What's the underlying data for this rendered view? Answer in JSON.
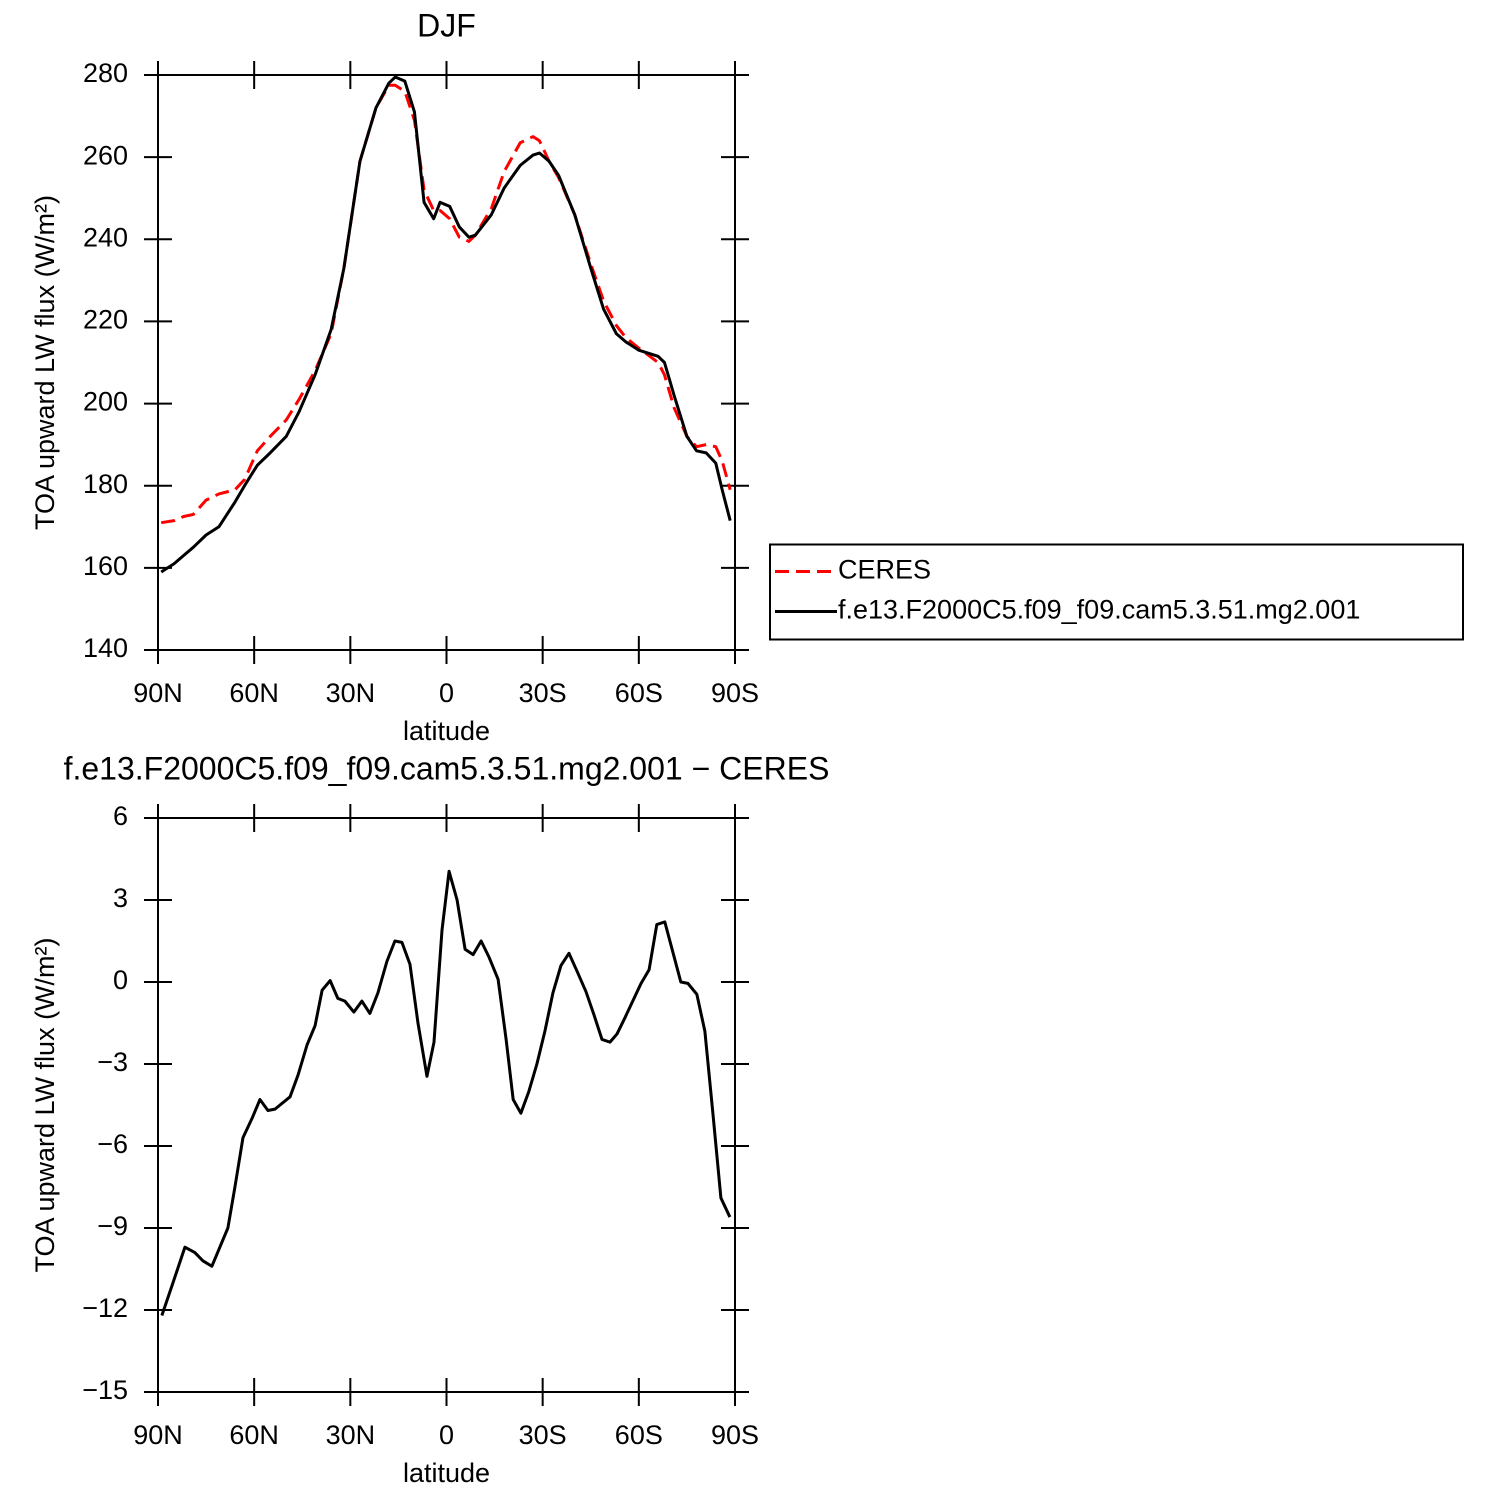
{
  "chart_data": [
    {
      "type": "line",
      "title": "DJF",
      "xlabel": "latitude",
      "ylabel": "TOA upward LW flux (W/m²)",
      "x": [
        89,
        85,
        82,
        79,
        75,
        71,
        66,
        63,
        59,
        55,
        50,
        46,
        41,
        36,
        32,
        27,
        22,
        18,
        16,
        13,
        10,
        7,
        4,
        2,
        -1,
        -4,
        -7,
        -9,
        -14,
        -18,
        -23,
        -27,
        -29,
        -32,
        -35,
        -40,
        -45,
        -49,
        -53,
        -56,
        -60,
        -66,
        -68,
        -71,
        -75,
        -78,
        -81,
        -84,
        -86,
        -88.5
      ],
      "series": [
        {
          "name": "CERES",
          "color": "#ff0000",
          "line_style": "dashed",
          "values": [
            171,
            171.5,
            172.5,
            173,
            176.5,
            178,
            179,
            181.5,
            188.5,
            192,
            196,
            201,
            208,
            217,
            233,
            259,
            272,
            277.5,
            277.5,
            276,
            269,
            252,
            247,
            247,
            245,
            240.5,
            239.5,
            241,
            247.5,
            256.5,
            263.5,
            265,
            264,
            259,
            255,
            246,
            234,
            225,
            219,
            216,
            213.5,
            210,
            207,
            199,
            192,
            189.5,
            190,
            189.5,
            186,
            179
          ]
        },
        {
          "name": "f.e13.F2000C5.f09_f09.cam5.3.51.mg2.001",
          "color": "#000000",
          "line_style": "solid",
          "values": [
            159,
            161,
            163,
            165,
            168,
            170,
            176,
            180,
            185,
            188,
            192,
            198,
            207,
            218,
            233,
            259,
            272,
            278,
            279.5,
            278.5,
            271,
            249,
            245,
            249,
            248,
            243,
            240.5,
            241,
            246,
            252.5,
            258,
            260.5,
            261,
            259,
            255.5,
            246,
            233,
            223,
            217,
            215,
            213,
            211.5,
            210,
            202,
            192,
            188.5,
            188,
            185.5,
            179,
            171.5
          ]
        }
      ],
      "xlim": [
        90,
        -90
      ],
      "xticks": [
        {
          "value": 90,
          "label": "90N"
        },
        {
          "value": 60,
          "label": "60N"
        },
        {
          "value": 30,
          "label": "30N"
        },
        0,
        {
          "value": -30,
          "label": "30S"
        },
        {
          "value": -60,
          "label": "60S"
        },
        {
          "value": -90,
          "label": "90S"
        }
      ],
      "ylim": [
        140,
        280
      ],
      "yticks": [
        140,
        160,
        180,
        200,
        220,
        240,
        260,
        280
      ],
      "legend": "right"
    },
    {
      "type": "line",
      "title": "f.e13.F2000C5.f09_f09.cam5.3.51.mg2.001 − CERES",
      "xlabel": "latitude",
      "ylabel": "TOA upward LW flux (W/m²)",
      "x": [
        88.8,
        85.6,
        81.6,
        78.5,
        76.0,
        73.2,
        68.2,
        66.0,
        63.5,
        60.7,
        58.2,
        55.7,
        53.5,
        48.8,
        46.3,
        43.5,
        41.0,
        38.8,
        36.3,
        33.9,
        31.7,
        28.9,
        26.4,
        23.9,
        21.4,
        18.6,
        16.1,
        13.9,
        11.4,
        8.9,
        6.1,
        3.9,
        1.4,
        -0.8,
        -3.3,
        -5.8,
        -8.3,
        -10.8,
        -13.3,
        -16.1,
        -18.6,
        -20.8,
        -23.2,
        -25.7,
        -28.2,
        -30.7,
        -33.2,
        -35.7,
        -38.2,
        -40.7,
        -43.5,
        -46.0,
        -48.5,
        -51.0,
        -53.2,
        -55.7,
        -58.5,
        -60.7,
        -63.2,
        -65.6,
        -68.1,
        -70.6,
        -73.1,
        -75.3,
        -78.1,
        -80.6,
        -83.1,
        -85.6,
        -88.4
      ],
      "series": [
        {
          "color": "#000000",
          "line_style": "solid",
          "values": [
            -12.2,
            -11.1,
            -9.7,
            -9.9,
            -10.2,
            -10.4,
            -9.0,
            -7.5,
            -5.7,
            -5.0,
            -4.3,
            -4.7,
            -4.65,
            -4.2,
            -3.4,
            -2.3,
            -1.6,
            -0.3,
            0.05,
            -0.6,
            -0.7,
            -1.1,
            -0.7,
            -1.15,
            -0.4,
            0.75,
            1.5,
            1.45,
            0.65,
            -1.5,
            -3.45,
            -2.2,
            1.9,
            4.05,
            3.0,
            1.2,
            1.0,
            1.5,
            0.9,
            0.1,
            -2.1,
            -4.3,
            -4.8,
            -4.0,
            -3.0,
            -1.8,
            -0.4,
            0.6,
            1.05,
            0.4,
            -0.35,
            -1.2,
            -2.1,
            -2.2,
            -1.9,
            -1.3,
            -0.6,
            -0.05,
            0.45,
            2.1,
            2.2,
            1.1,
            0.0,
            -0.05,
            -0.45,
            -1.8,
            -4.8,
            -7.9,
            -8.6
          ]
        }
      ],
      "xlim": [
        90,
        -90
      ],
      "xticks": [
        {
          "value": 90,
          "label": "90N"
        },
        {
          "value": 60,
          "label": "60N"
        },
        {
          "value": 30,
          "label": "30N"
        },
        0,
        {
          "value": -30,
          "label": "30S"
        },
        {
          "value": -60,
          "label": "60S"
        },
        {
          "value": -90,
          "label": "90S"
        }
      ],
      "ylim": [
        -15,
        6
      ],
      "yticks": [
        {
          "value": -15,
          "label": "−15"
        },
        {
          "value": -12,
          "label": "−12"
        },
        {
          "value": -9,
          "label": "−9"
        },
        {
          "value": -6,
          "label": "−6"
        },
        {
          "value": -3,
          "label": "−3"
        },
        0,
        3,
        6
      ]
    }
  ]
}
